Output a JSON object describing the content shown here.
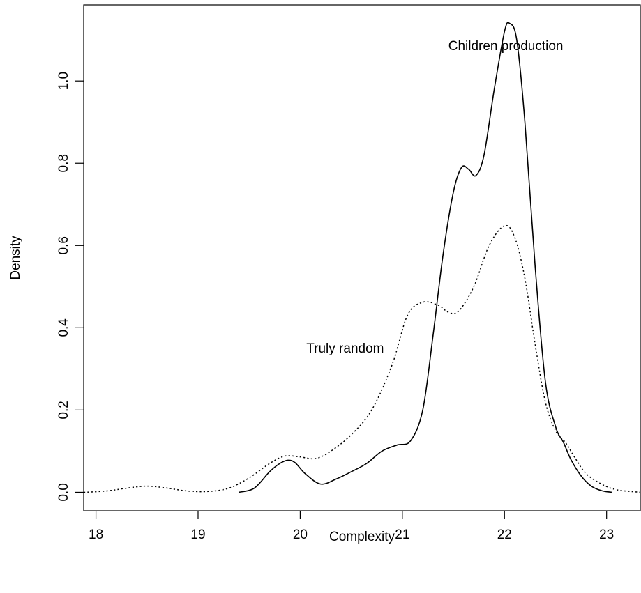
{
  "chart_data": {
    "type": "line",
    "title": "",
    "xlabel": "Complexity",
    "ylabel": "Density",
    "xlim": [
      17.88,
      23.33
    ],
    "ylim": [
      -0.045,
      1.185
    ],
    "xticks": [
      18,
      19,
      20,
      21,
      22,
      23
    ],
    "yticks": [
      0.0,
      0.2,
      0.4,
      0.6,
      0.8,
      1.0
    ],
    "xtick_labels": [
      "18",
      "19",
      "20",
      "21",
      "22",
      "23"
    ],
    "ytick_labels": [
      "0.0",
      "0.2",
      "0.4",
      "0.6",
      "0.8",
      "1.0"
    ],
    "grid": false,
    "legend": "none",
    "series": [
      {
        "name": "Children production",
        "style": "solid",
        "x": [
          19.4,
          19.55,
          19.7,
          19.8,
          19.88,
          19.95,
          20.05,
          20.2,
          20.35,
          20.5,
          20.65,
          20.8,
          20.95,
          21.08,
          21.2,
          21.3,
          21.4,
          21.5,
          21.58,
          21.65,
          21.72,
          21.8,
          21.9,
          22.0,
          22.05,
          22.12,
          22.2,
          22.3,
          22.4,
          22.5,
          22.58,
          22.65,
          22.75,
          22.85,
          22.95,
          23.05
        ],
        "y": [
          0.0,
          0.01,
          0.05,
          0.07,
          0.078,
          0.072,
          0.045,
          0.02,
          0.032,
          0.05,
          0.07,
          0.1,
          0.115,
          0.125,
          0.2,
          0.38,
          0.58,
          0.73,
          0.79,
          0.785,
          0.77,
          0.82,
          0.98,
          1.12,
          1.14,
          1.1,
          0.9,
          0.55,
          0.27,
          0.16,
          0.12,
          0.08,
          0.04,
          0.015,
          0.004,
          0.0
        ]
      },
      {
        "name": "Truly random",
        "style": "dotted",
        "x": [
          17.88,
          18.1,
          18.3,
          18.5,
          18.7,
          18.9,
          19.1,
          19.3,
          19.5,
          19.7,
          19.85,
          20.0,
          20.15,
          20.3,
          20.5,
          20.7,
          20.9,
          21.05,
          21.2,
          21.35,
          21.45,
          21.55,
          21.7,
          21.85,
          22.0,
          22.1,
          22.2,
          22.3,
          22.4,
          22.5,
          22.6,
          22.7,
          22.8,
          22.95,
          23.1,
          23.33
        ],
        "y": [
          0.0,
          0.003,
          0.01,
          0.015,
          0.01,
          0.003,
          0.002,
          0.01,
          0.035,
          0.07,
          0.088,
          0.086,
          0.082,
          0.1,
          0.14,
          0.2,
          0.31,
          0.43,
          0.462,
          0.455,
          0.438,
          0.44,
          0.5,
          0.6,
          0.648,
          0.62,
          0.52,
          0.36,
          0.22,
          0.15,
          0.12,
          0.08,
          0.045,
          0.02,
          0.006,
          0.0
        ]
      }
    ],
    "annotations": [
      {
        "text": "Children production",
        "x": 21.45,
        "y": 1.075,
        "anchor": "start"
      },
      {
        "text": "Truly random",
        "x": 20.82,
        "y": 0.34,
        "anchor": "end"
      }
    ]
  }
}
